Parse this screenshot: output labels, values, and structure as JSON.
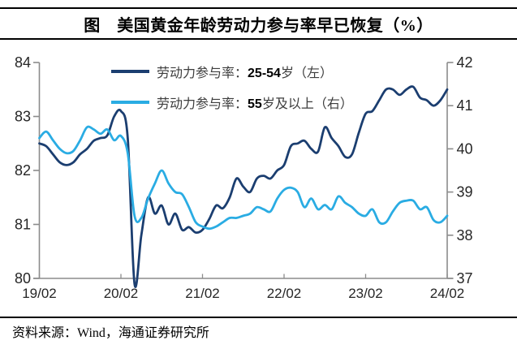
{
  "header": {
    "title": "图　美国黄金年龄劳动力参与率早已恢复（%）"
  },
  "footer": {
    "source": "资料来源：Wind，海通证券研究所"
  },
  "colors": {
    "navy": "#1b3e70",
    "cyan": "#2aace3",
    "axis": "#8c8c8c",
    "rule": "#000000"
  },
  "chart_data": {
    "type": "line",
    "title": "图　美国黄金年龄劳动力参与率早已恢复（%）",
    "frequency": "monthly",
    "x_start": "2019-02",
    "x_end": "2024-02",
    "grid": false,
    "legend_position": "top-inside",
    "x_tick_labels": [
      "19/02",
      "20/02",
      "21/02",
      "22/02",
      "23/02",
      "24/02"
    ],
    "left_axis": {
      "min": 80,
      "max": 84,
      "ticks": [
        84,
        83,
        82,
        81,
        80
      ]
    },
    "right_axis": {
      "min": 37,
      "max": 42,
      "ticks": [
        42,
        41,
        40,
        39,
        38,
        37
      ]
    },
    "months": [
      "2019-02",
      "2019-03",
      "2019-04",
      "2019-05",
      "2019-06",
      "2019-07",
      "2019-08",
      "2019-09",
      "2019-10",
      "2019-11",
      "2019-12",
      "2020-01",
      "2020-02",
      "2020-03",
      "2020-04",
      "2020-05",
      "2020-06",
      "2020-07",
      "2020-08",
      "2020-09",
      "2020-10",
      "2020-11",
      "2020-12",
      "2021-01",
      "2021-02",
      "2021-03",
      "2021-04",
      "2021-05",
      "2021-06",
      "2021-07",
      "2021-08",
      "2021-09",
      "2021-10",
      "2021-11",
      "2021-12",
      "2022-01",
      "2022-02",
      "2022-03",
      "2022-04",
      "2022-05",
      "2022-06",
      "2022-07",
      "2022-08",
      "2022-09",
      "2022-10",
      "2022-11",
      "2022-12",
      "2023-01",
      "2023-02",
      "2023-03",
      "2023-04",
      "2023-05",
      "2023-06",
      "2023-07",
      "2023-08",
      "2023-09",
      "2023-10",
      "2023-11",
      "2023-12",
      "2024-01",
      "2024-02"
    ],
    "series": [
      {
        "name": "劳动力参与率：25-54岁（左）",
        "legend": {
          "prefix": "劳动力参与率：",
          "bold": "25-54",
          "suffix": "岁（左）"
        },
        "axis": "left",
        "color": "#1b3e70",
        "values": [
          82.5,
          82.45,
          82.3,
          82.15,
          82.1,
          82.15,
          82.3,
          82.4,
          82.55,
          82.6,
          82.65,
          83.0,
          83.1,
          82.6,
          79.9,
          80.8,
          81.5,
          81.2,
          81.35,
          81.0,
          81.2,
          80.9,
          80.95,
          80.85,
          80.9,
          81.1,
          81.35,
          81.3,
          81.5,
          81.85,
          81.7,
          81.6,
          81.85,
          81.9,
          81.85,
          82.0,
          82.1,
          82.45,
          82.5,
          82.55,
          82.4,
          82.35,
          82.8,
          82.6,
          82.45,
          82.25,
          82.3,
          82.7,
          83.05,
          83.1,
          83.3,
          83.5,
          83.5,
          83.4,
          83.5,
          83.55,
          83.35,
          83.3,
          83.2,
          83.3,
          83.5
        ]
      },
      {
        "name": "劳动力参与率：55岁及以上（右）",
        "legend": {
          "prefix": "劳动力参与率：",
          "bold": "55",
          "suffix": "岁及以上（右）"
        },
        "axis": "right",
        "color": "#2aace3",
        "values": [
          40.25,
          40.4,
          40.2,
          40.0,
          39.9,
          39.95,
          40.2,
          40.5,
          40.45,
          40.35,
          40.45,
          40.2,
          40.3,
          39.9,
          38.45,
          38.4,
          38.85,
          39.2,
          39.5,
          39.2,
          39.0,
          38.95,
          38.65,
          38.3,
          38.2,
          38.15,
          38.2,
          38.3,
          38.4,
          38.4,
          38.45,
          38.5,
          38.65,
          38.6,
          38.55,
          38.85,
          39.05,
          39.1,
          39.0,
          38.65,
          38.85,
          38.6,
          38.7,
          38.6,
          38.9,
          38.75,
          38.65,
          38.5,
          38.45,
          38.6,
          38.3,
          38.3,
          38.55,
          38.75,
          38.8,
          38.8,
          38.6,
          38.65,
          38.35,
          38.3,
          38.45
        ]
      }
    ]
  }
}
